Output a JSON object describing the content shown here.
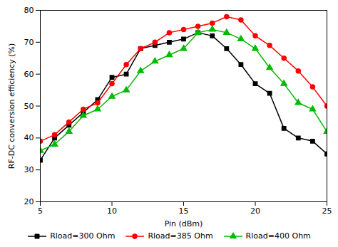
{
  "chart_data": {
    "type": "line",
    "x": [
      5,
      6,
      7,
      8,
      9,
      10,
      11,
      12,
      13,
      14,
      15,
      16,
      17,
      18,
      19,
      20,
      21,
      22,
      23,
      24,
      25
    ],
    "series": [
      {
        "name": "Rload=300 Ohm",
        "color": "#000000",
        "marker": "square",
        "line_style": "solid",
        "values": [
          33,
          40,
          44,
          48,
          52,
          59,
          60,
          68,
          69,
          70,
          71,
          73,
          72,
          68,
          63,
          57,
          54,
          43,
          40,
          39,
          35
        ]
      },
      {
        "name": "Rload=385 Ohm",
        "color": "#ff0000",
        "marker": "circle",
        "line_style": "solid",
        "values": [
          39,
          41,
          45,
          49,
          51,
          57,
          63,
          68,
          70,
          73,
          74,
          75,
          76,
          78,
          77,
          72,
          69,
          65,
          61,
          56,
          50
        ]
      },
      {
        "name": "Rload=400 Ohm",
        "color": "#00bb00",
        "marker": "triangle",
        "line_style": "solid",
        "values": [
          36,
          38,
          42,
          47,
          49,
          53,
          55,
          61,
          64,
          66,
          68,
          73,
          74,
          73,
          71,
          68,
          62,
          57,
          51,
          49,
          42
        ]
      }
    ],
    "xlabel": "Pin (dBm)",
    "ylabel": "RF-DC conversion efficiency (%)",
    "xlim": [
      5,
      25
    ],
    "ylim": [
      20,
      80
    ],
    "xticks": [
      5,
      10,
      15,
      20,
      25
    ],
    "yticks": [
      20,
      30,
      40,
      50,
      60,
      70,
      80
    ],
    "grid": false,
    "legend": "bottom"
  }
}
